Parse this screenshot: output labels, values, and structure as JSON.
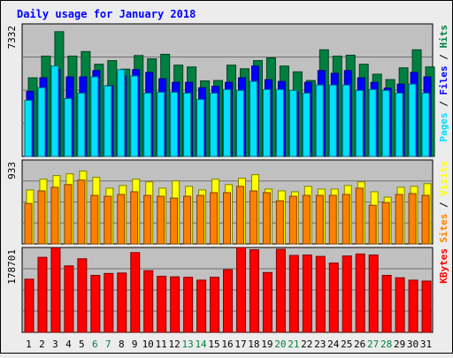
{
  "chart_data": {
    "type": "bar",
    "title": "Daily usage for January 2018",
    "categories": [
      "1",
      "2",
      "3",
      "4",
      "5",
      "6",
      "7",
      "8",
      "9",
      "10",
      "11",
      "12",
      "13",
      "14",
      "15",
      "16",
      "17",
      "18",
      "19",
      "20",
      "21",
      "22",
      "23",
      "24",
      "25",
      "26",
      "27",
      "28",
      "29",
      "30",
      "31"
    ],
    "weekend_days": [
      "6",
      "7",
      "13",
      "14",
      "20",
      "21",
      "27",
      "28"
    ],
    "panels": [
      {
        "id": "pages-files-hits",
        "ymax_label": "7332",
        "ymax": 7332,
        "legend": [
          "Pages",
          "/",
          "Files",
          "/",
          "Hits"
        ],
        "series": [
          {
            "name": "Hits",
            "color": "#008040",
            "values": [
              4350,
              5550,
              6900,
              5550,
              5800,
              5100,
              5300,
              4830,
              5580,
              5400,
              5650,
              5050,
              4950,
              4180,
              4200,
              5050,
              4850,
              5300,
              5450,
              5000,
              4680,
              4200,
              5900,
              5550,
              5600,
              5100,
              4550,
              4250,
              4900,
              5900,
              4950
            ]
          },
          {
            "name": "Files",
            "color": "#0000ff",
            "values": [
              3600,
              4350,
              4820,
              4400,
              4400,
              4750,
              3920,
              4450,
              4800,
              4650,
              4300,
              4100,
              4100,
              3800,
              3880,
              4100,
              4350,
              5000,
              4250,
              4150,
              3550,
              4100,
              4750,
              4600,
              4750,
              4350,
              4100,
              3780,
              4000,
              4650,
              4400
            ]
          },
          {
            "name": "Pages",
            "color": "#00e0ff",
            "values": [
              3100,
              3800,
              5000,
              3200,
              3500,
              4400,
              3900,
              4800,
              4450,
              3500,
              3550,
              3550,
              3500,
              3150,
              3500,
              3700,
              3650,
              4150,
              3700,
              3700,
              3650,
              3500,
              3950,
              3950,
              3950,
              3650,
              3700,
              3650,
              3500,
              4000,
              3500
            ]
          }
        ]
      },
      {
        "id": "sites-visits",
        "ymax_label": "933",
        "ymax": 933,
        "legend": [
          "Sites",
          "/",
          "Visits"
        ],
        "series": [
          {
            "name": "Visits",
            "color": "#ffff00",
            "values": [
              600,
              720,
              760,
              780,
              810,
              740,
              620,
              650,
              720,
              690,
              620,
              700,
              640,
              600,
              720,
              660,
              730,
              770,
              610,
              590,
              580,
              640,
              610,
              610,
              650,
              690,
              580,
              520,
              630,
              640,
              670
            ]
          },
          {
            "name": "Sites",
            "color": "#ff8000",
            "values": [
              450,
              590,
              630,
              660,
              710,
              540,
              530,
              550,
              580,
              540,
              530,
              510,
              530,
              540,
              570,
              570,
              640,
              590,
              570,
              480,
              530,
              540,
              540,
              540,
              550,
              620,
              430,
              460,
              550,
              560,
              540
            ]
          }
        ]
      },
      {
        "id": "kbytes",
        "ymax_label": "178701",
        "ymax": 178701,
        "legend": [
          "KBytes"
        ],
        "series": [
          {
            "name": "KBytes",
            "color": "#ff0000",
            "values": [
              112000,
              158000,
              178000,
              140000,
              155000,
              120000,
              124000,
              125000,
              168000,
              130000,
              118000,
              117000,
              116000,
              110000,
              116000,
              132000,
              178500,
              174000,
              126000,
              175000,
              162000,
              163000,
              160000,
              146000,
              161000,
              165000,
              163000,
              120000,
              115000,
              110000,
              108000
            ]
          }
        ]
      }
    ]
  },
  "colors": {
    "background": "#ececec",
    "plot_area": "#c0c0c0",
    "title": "#0000ff",
    "axis_text": "#000000",
    "weekend_text": "#008040"
  }
}
